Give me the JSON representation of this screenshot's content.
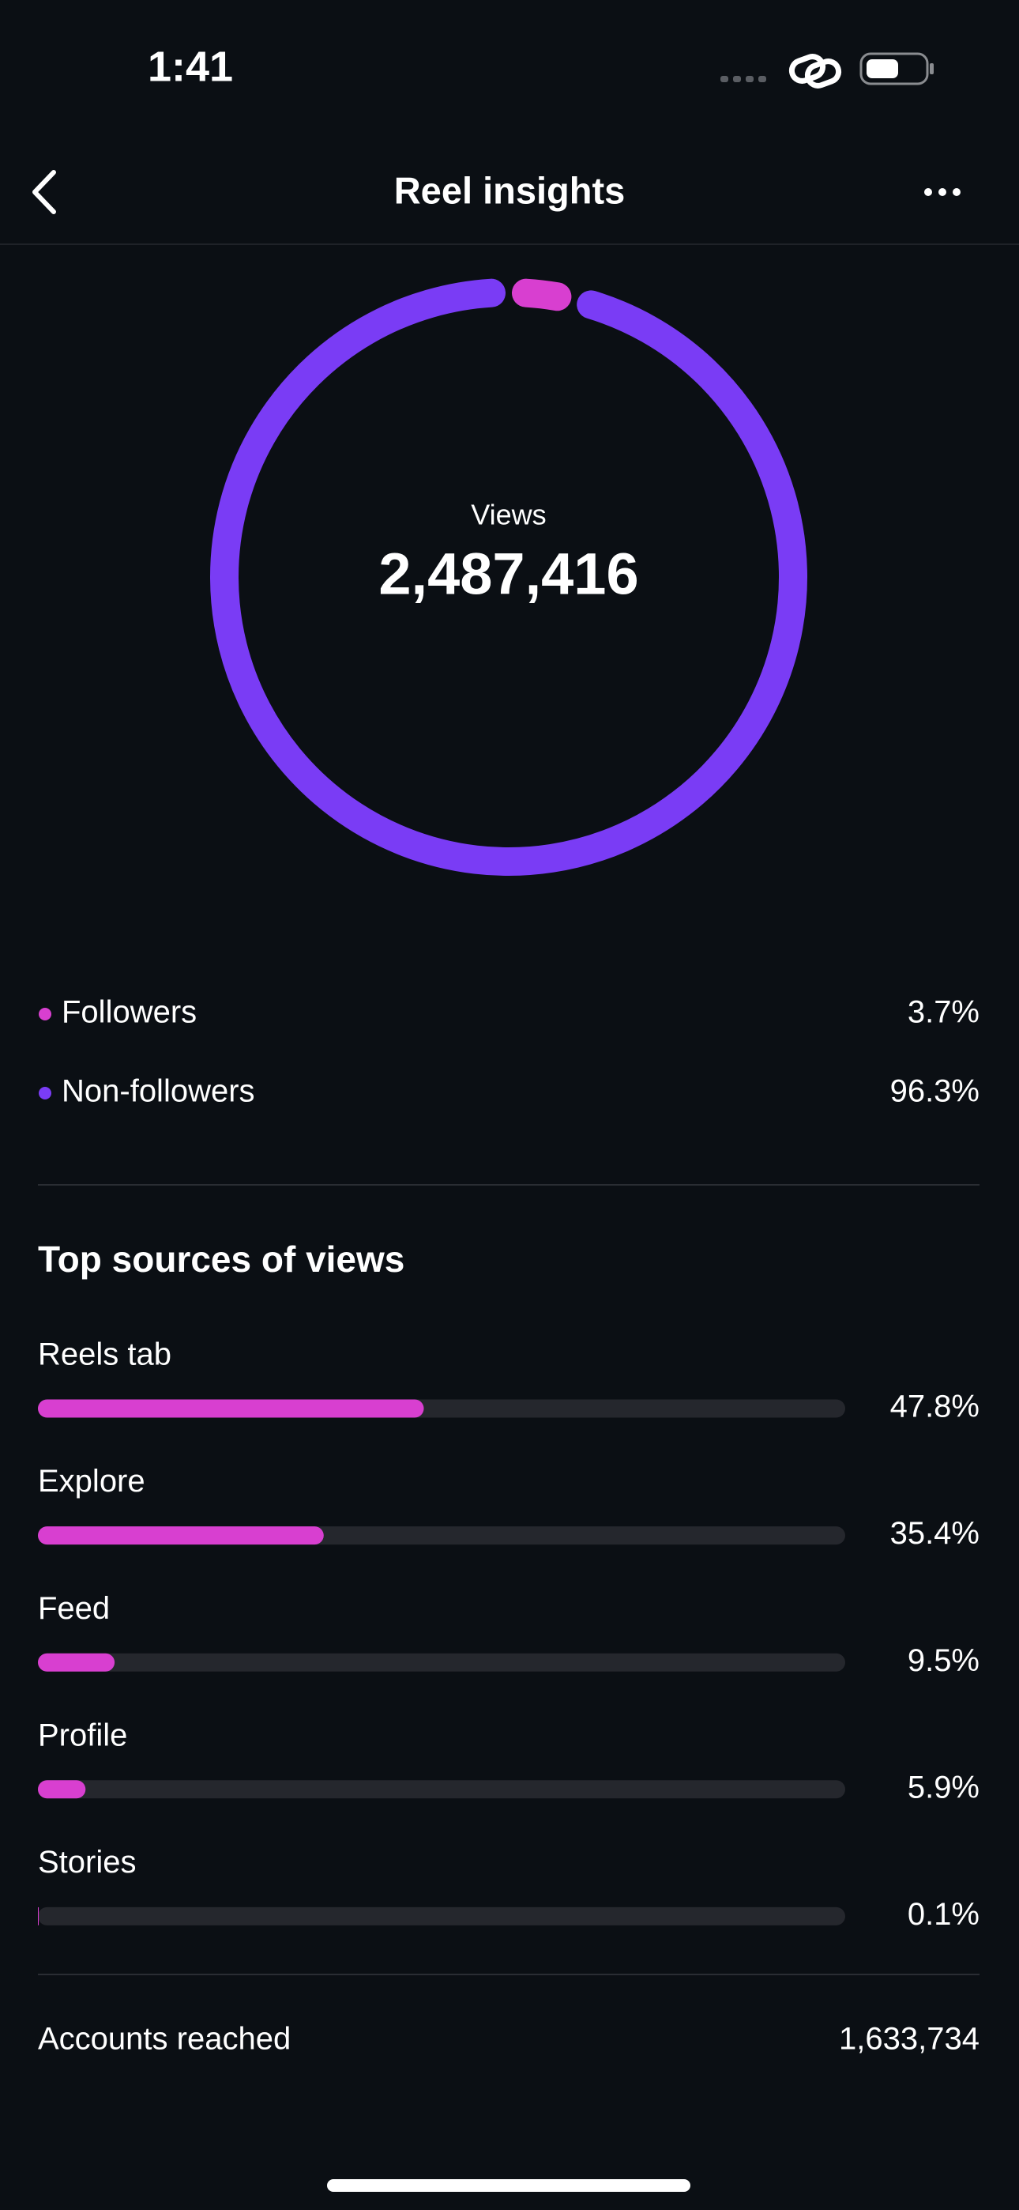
{
  "status_bar": {
    "time": "1:41"
  },
  "header": {
    "title": "Reel insights"
  },
  "chart_data": [
    {
      "type": "donut",
      "center_label": "Views",
      "center_value": "2,487,416",
      "categories": [
        "Followers",
        "Non-followers"
      ],
      "values": [
        3.7,
        96.3
      ],
      "value_labels": [
        "3.7%",
        "96.3%"
      ],
      "colors": [
        "#d83fd0",
        "#7a3cf5"
      ]
    },
    {
      "type": "progress",
      "title": "Top sources of views",
      "categories": [
        "Reels tab",
        "Explore",
        "Feed",
        "Profile",
        "Stories"
      ],
      "values": [
        47.8,
        35.4,
        9.5,
        5.9,
        0.1
      ],
      "value_labels": [
        "47.8%",
        "35.4%",
        "9.5%",
        "5.9%",
        "0.1%"
      ],
      "xlim": [
        0,
        100
      ],
      "color": "#d83fd0",
      "track_color": "#25272d"
    }
  ],
  "footer": {
    "label": "Accounts reached",
    "value": "1,633,734"
  }
}
